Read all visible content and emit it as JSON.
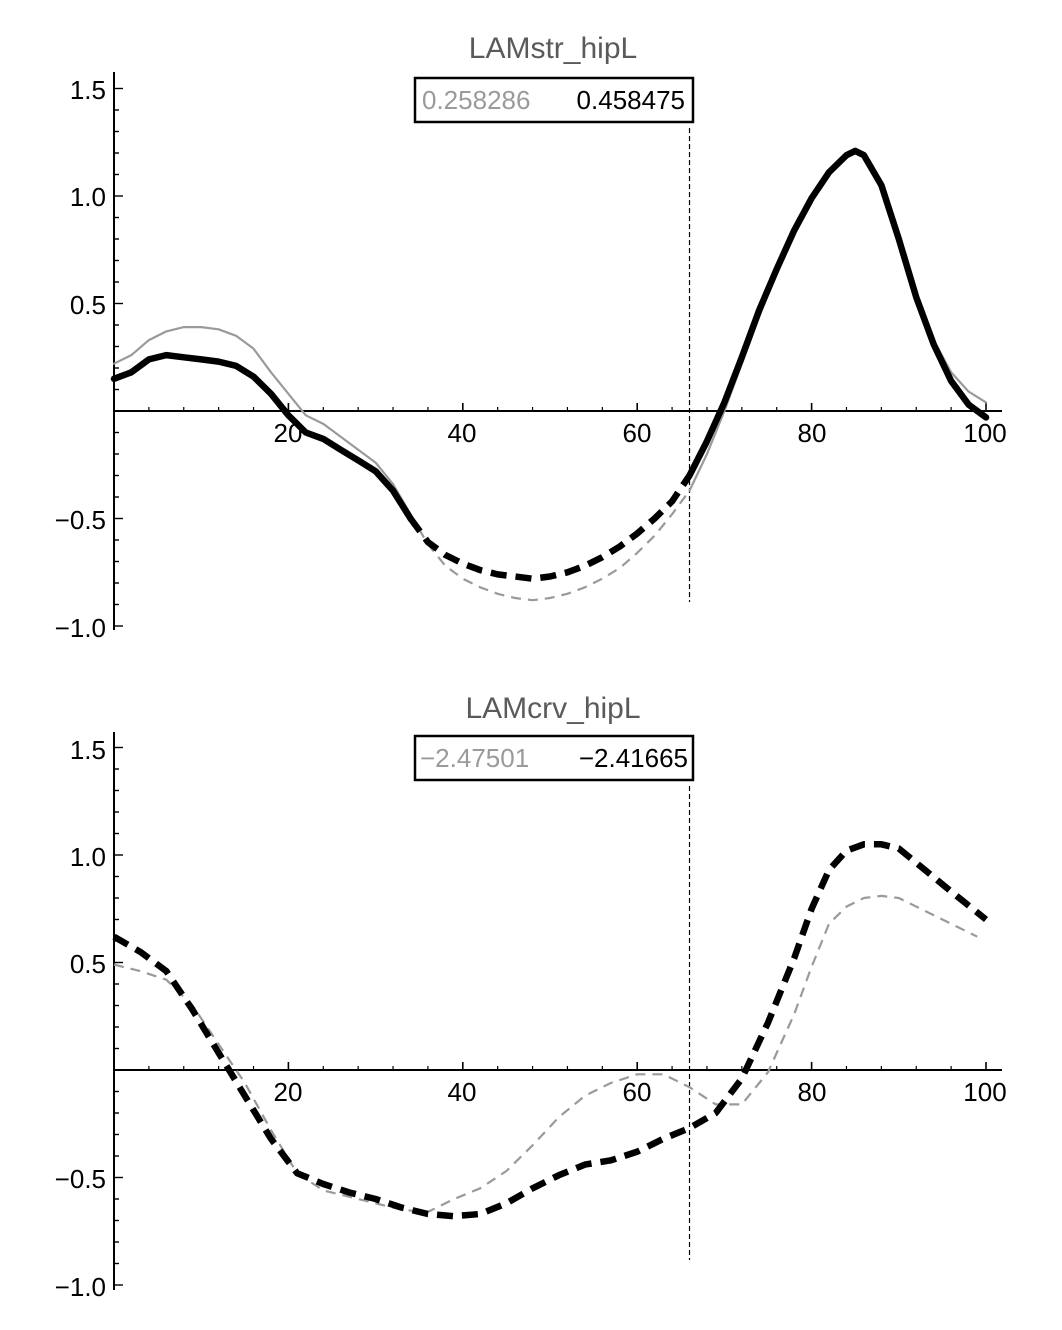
{
  "chart_data": [
    {
      "type": "line",
      "title": "LAMstr_hipL",
      "values_box": {
        "gray": "0.258286",
        "black": "0.458475"
      },
      "xlim": [
        0,
        100
      ],
      "ylim": [
        -1.0,
        1.5
      ],
      "x_ticks": [
        "20",
        "40",
        "60",
        "80",
        "100"
      ],
      "y_ticks": [
        "1.5",
        "1.0",
        "0.5",
        "−0.5",
        "−1.0"
      ],
      "vertical_marker_x": 66,
      "series": [
        {
          "color": "#9a9a9a",
          "points": [
            [
              0,
              0.22
            ],
            [
              2,
              0.26
            ],
            [
              4,
              0.33
            ],
            [
              6,
              0.37
            ],
            [
              8,
              0.39
            ],
            [
              10,
              0.39
            ],
            [
              12,
              0.38
            ],
            [
              14,
              0.35
            ],
            [
              16,
              0.29
            ],
            [
              18,
              0.18
            ],
            [
              20,
              0.08
            ],
            [
              22,
              -0.02
            ],
            [
              24,
              -0.06
            ],
            [
              26,
              -0.12
            ],
            [
              28,
              -0.18
            ],
            [
              30,
              -0.24
            ],
            [
              32,
              -0.34
            ],
            [
              34,
              -0.48
            ],
            [
              36,
              -0.62
            ],
            [
              38,
              -0.72
            ],
            [
              40,
              -0.78
            ],
            [
              42,
              -0.82
            ],
            [
              44,
              -0.85
            ],
            [
              46,
              -0.87
            ],
            [
              48,
              -0.88
            ],
            [
              50,
              -0.87
            ],
            [
              52,
              -0.85
            ],
            [
              54,
              -0.82
            ],
            [
              56,
              -0.78
            ],
            [
              58,
              -0.73
            ],
            [
              60,
              -0.66
            ],
            [
              62,
              -0.58
            ],
            [
              64,
              -0.48
            ],
            [
              66,
              -0.37
            ],
            [
              68,
              -0.2
            ],
            [
              70,
              0.0
            ],
            [
              72,
              0.22
            ],
            [
              74,
              0.44
            ],
            [
              76,
              0.64
            ],
            [
              78,
              0.82
            ],
            [
              80,
              0.98
            ],
            [
              82,
              1.1
            ],
            [
              84,
              1.19
            ],
            [
              85,
              1.2
            ],
            [
              86,
              1.18
            ],
            [
              88,
              1.06
            ],
            [
              90,
              0.82
            ],
            [
              92,
              0.55
            ],
            [
              94,
              0.33
            ],
            [
              96,
              0.18
            ],
            [
              98,
              0.09
            ],
            [
              100,
              0.04
            ]
          ],
          "solid_ranges": [
            [
              0,
              34
            ],
            [
              66,
              100
            ]
          ]
        },
        {
          "color": "#000000",
          "points": [
            [
              0,
              0.15
            ],
            [
              2,
              0.18
            ],
            [
              4,
              0.24
            ],
            [
              6,
              0.26
            ],
            [
              8,
              0.25
            ],
            [
              10,
              0.24
            ],
            [
              12,
              0.23
            ],
            [
              14,
              0.21
            ],
            [
              16,
              0.16
            ],
            [
              18,
              0.08
            ],
            [
              20,
              -0.02
            ],
            [
              22,
              -0.1
            ],
            [
              24,
              -0.13
            ],
            [
              26,
              -0.18
            ],
            [
              28,
              -0.23
            ],
            [
              30,
              -0.28
            ],
            [
              32,
              -0.37
            ],
            [
              34,
              -0.5
            ],
            [
              36,
              -0.61
            ],
            [
              38,
              -0.67
            ],
            [
              40,
              -0.71
            ],
            [
              42,
              -0.74
            ],
            [
              44,
              -0.76
            ],
            [
              46,
              -0.77
            ],
            [
              48,
              -0.78
            ],
            [
              50,
              -0.77
            ],
            [
              52,
              -0.75
            ],
            [
              54,
              -0.72
            ],
            [
              56,
              -0.68
            ],
            [
              58,
              -0.63
            ],
            [
              60,
              -0.57
            ],
            [
              62,
              -0.5
            ],
            [
              64,
              -0.42
            ],
            [
              66,
              -0.3
            ],
            [
              68,
              -0.14
            ],
            [
              70,
              0.04
            ],
            [
              72,
              0.25
            ],
            [
              74,
              0.47
            ],
            [
              76,
              0.66
            ],
            [
              78,
              0.84
            ],
            [
              80,
              0.99
            ],
            [
              82,
              1.11
            ],
            [
              84,
              1.19
            ],
            [
              85,
              1.21
            ],
            [
              86,
              1.19
            ],
            [
              88,
              1.05
            ],
            [
              90,
              0.8
            ],
            [
              92,
              0.53
            ],
            [
              94,
              0.31
            ],
            [
              96,
              0.14
            ],
            [
              98,
              0.03
            ],
            [
              100,
              -0.03
            ]
          ],
          "solid_ranges": [
            [
              0,
              34
            ],
            [
              66,
              100
            ]
          ]
        }
      ]
    },
    {
      "type": "line",
      "title": "LAMcrv_hipL",
      "values_box": {
        "gray": "−2.47501",
        "black": "−2.41665"
      },
      "xlim": [
        0,
        100
      ],
      "ylim": [
        -1.0,
        1.5
      ],
      "x_ticks": [
        "20",
        "40",
        "60",
        "80",
        "100"
      ],
      "y_ticks": [
        "1.5",
        "1.0",
        "0.5",
        "−0.5",
        "−1.0"
      ],
      "vertical_marker_x": 66,
      "series": [
        {
          "color": "#9a9a9a",
          "points": [
            [
              0,
              0.49
            ],
            [
              3,
              0.46
            ],
            [
              6,
              0.42
            ],
            [
              9,
              0.3
            ],
            [
              12,
              0.12
            ],
            [
              15,
              -0.06
            ],
            [
              18,
              -0.28
            ],
            [
              21,
              -0.48
            ],
            [
              24,
              -0.56
            ],
            [
              27,
              -0.59
            ],
            [
              30,
              -0.62
            ],
            [
              33,
              -0.65
            ],
            [
              36,
              -0.66
            ],
            [
              39,
              -0.6
            ],
            [
              42,
              -0.55
            ],
            [
              45,
              -0.47
            ],
            [
              48,
              -0.35
            ],
            [
              51,
              -0.22
            ],
            [
              54,
              -0.12
            ],
            [
              57,
              -0.06
            ],
            [
              60,
              -0.02
            ],
            [
              63,
              -0.02
            ],
            [
              66,
              -0.08
            ],
            [
              69,
              -0.16
            ],
            [
              72,
              -0.16
            ],
            [
              75,
              -0.01
            ],
            [
              78,
              0.26
            ],
            [
              80,
              0.48
            ],
            [
              82,
              0.68
            ],
            [
              84,
              0.76
            ],
            [
              86,
              0.8
            ],
            [
              88,
              0.81
            ],
            [
              90,
              0.8
            ],
            [
              93,
              0.74
            ],
            [
              96,
              0.68
            ],
            [
              99,
              0.62
            ]
          ],
          "solid_ranges": []
        },
        {
          "color": "#000000",
          "points": [
            [
              0,
              0.62
            ],
            [
              3,
              0.55
            ],
            [
              6,
              0.46
            ],
            [
              9,
              0.28
            ],
            [
              12,
              0.08
            ],
            [
              15,
              -0.12
            ],
            [
              18,
              -0.32
            ],
            [
              21,
              -0.48
            ],
            [
              24,
              -0.53
            ],
            [
              27,
              -0.57
            ],
            [
              30,
              -0.6
            ],
            [
              33,
              -0.64
            ],
            [
              36,
              -0.67
            ],
            [
              39,
              -0.68
            ],
            [
              42,
              -0.67
            ],
            [
              45,
              -0.62
            ],
            [
              48,
              -0.55
            ],
            [
              51,
              -0.49
            ],
            [
              54,
              -0.44
            ],
            [
              57,
              -0.42
            ],
            [
              60,
              -0.38
            ],
            [
              63,
              -0.32
            ],
            [
              66,
              -0.27
            ],
            [
              69,
              -0.2
            ],
            [
              72,
              -0.04
            ],
            [
              75,
              0.22
            ],
            [
              78,
              0.52
            ],
            [
              80,
              0.75
            ],
            [
              82,
              0.93
            ],
            [
              84,
              1.02
            ],
            [
              86,
              1.05
            ],
            [
              88,
              1.05
            ],
            [
              90,
              1.03
            ],
            [
              93,
              0.93
            ],
            [
              96,
              0.83
            ],
            [
              100,
              0.7
            ]
          ],
          "solid_ranges": []
        }
      ]
    }
  ]
}
